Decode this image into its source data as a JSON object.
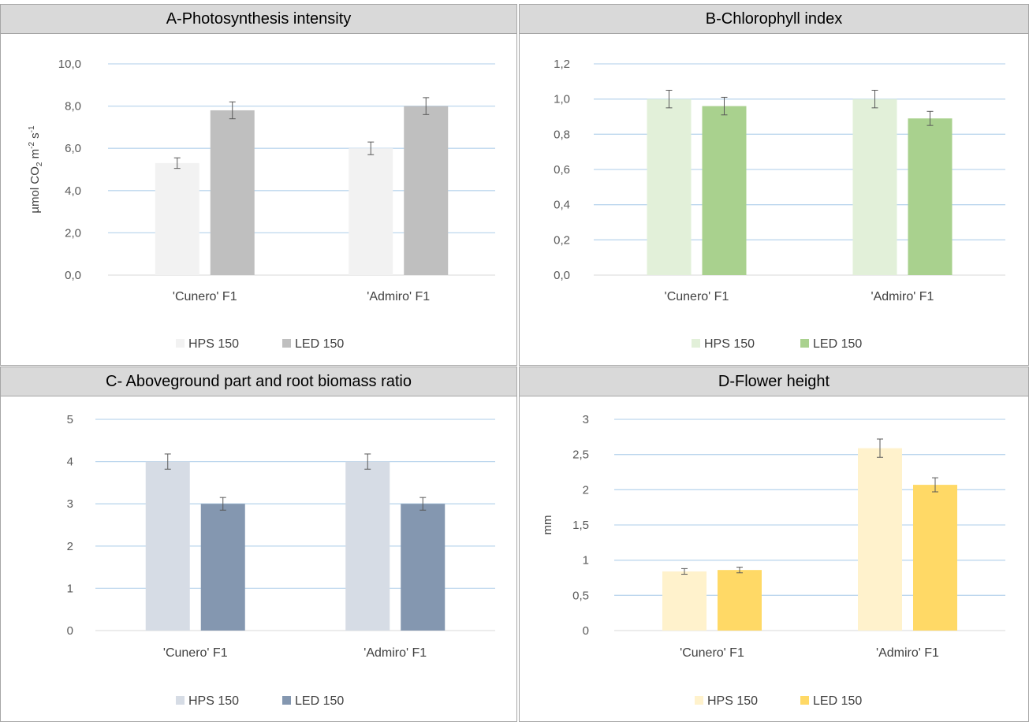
{
  "chart_data": [
    {
      "type": "bar",
      "title": "A-Photosynthesis intensity",
      "ylabel": "µmol CO2 m-2 s-1",
      "ylabel_parts": [
        "µmol CO",
        "2",
        " m",
        "-2",
        " s",
        "-1"
      ],
      "categories": [
        "'Cunero' F1",
        "'Admiro' F1"
      ],
      "series": [
        {
          "name": "HPS 150",
          "values": [
            5.3,
            6.0
          ],
          "errors": [
            0.25,
            0.3
          ],
          "color": "#f2f2f2"
        },
        {
          "name": "LED 150",
          "values": [
            7.8,
            8.0
          ],
          "errors": [
            0.4,
            0.4
          ],
          "color": "#bfbfbf"
        }
      ],
      "ylim": [
        0,
        10
      ],
      "yticks": [
        0,
        2,
        4,
        6,
        8,
        10
      ],
      "ytick_labels": [
        "0,0",
        "2,0",
        "4,0",
        "6,0",
        "8,0",
        "10,0"
      ],
      "grid": true,
      "legend": "bottom"
    },
    {
      "type": "bar",
      "title": "B-Chlorophyll index",
      "ylabel": "",
      "categories": [
        "'Cunero' F1",
        "'Admiro' F1"
      ],
      "series": [
        {
          "name": "HPS 150",
          "values": [
            1.0,
            1.0
          ],
          "errors": [
            0.05,
            0.05
          ],
          "color": "#e2f0d9"
        },
        {
          "name": "LED 150",
          "values": [
            0.96,
            0.89
          ],
          "errors": [
            0.05,
            0.04
          ],
          "color": "#a9d18e"
        }
      ],
      "ylim": [
        0,
        1.2
      ],
      "yticks": [
        0,
        0.2,
        0.4,
        0.6,
        0.8,
        1.0,
        1.2
      ],
      "ytick_labels": [
        "0,0",
        "0,2",
        "0,4",
        "0,6",
        "0,8",
        "1,0",
        "1,2"
      ],
      "grid": true,
      "legend": "bottom"
    },
    {
      "type": "bar",
      "title": "C- Aboveground part and root biomass ratio",
      "ylabel": "",
      "categories": [
        "'Cunero' F1",
        "'Admiro' F1"
      ],
      "series": [
        {
          "name": "HPS 150",
          "values": [
            4,
            4
          ],
          "errors": [
            0.18,
            0.18
          ],
          "color": "#d6dce5"
        },
        {
          "name": "LED 150",
          "values": [
            3,
            3
          ],
          "errors": [
            0.15,
            0.15
          ],
          "color": "#8497b0"
        }
      ],
      "ylim": [
        0,
        5
      ],
      "yticks": [
        0,
        1,
        2,
        3,
        4,
        5
      ],
      "ytick_labels": [
        "0",
        "1",
        "2",
        "3",
        "4",
        "5"
      ],
      "grid": true,
      "legend": "bottom"
    },
    {
      "type": "bar",
      "title": "D-Flower height",
      "ylabel": "mm",
      "ylabel_parts": [
        "mm"
      ],
      "categories": [
        "'Cunero' F1",
        "'Admiro' F1"
      ],
      "series": [
        {
          "name": "HPS 150",
          "values": [
            0.84,
            2.59
          ],
          "errors": [
            0.04,
            0.13
          ],
          "color": "#fff2cc"
        },
        {
          "name": "LED 150",
          "values": [
            0.86,
            2.07
          ],
          "errors": [
            0.04,
            0.1
          ],
          "color": "#ffd966"
        }
      ],
      "ylim": [
        0,
        3
      ],
      "yticks": [
        0,
        0.5,
        1,
        1.5,
        2,
        2.5,
        3
      ],
      "ytick_labels": [
        "0",
        "0,5",
        "1",
        "1,5",
        "2",
        "2,5",
        "3"
      ],
      "grid": true,
      "legend": "bottom"
    }
  ]
}
